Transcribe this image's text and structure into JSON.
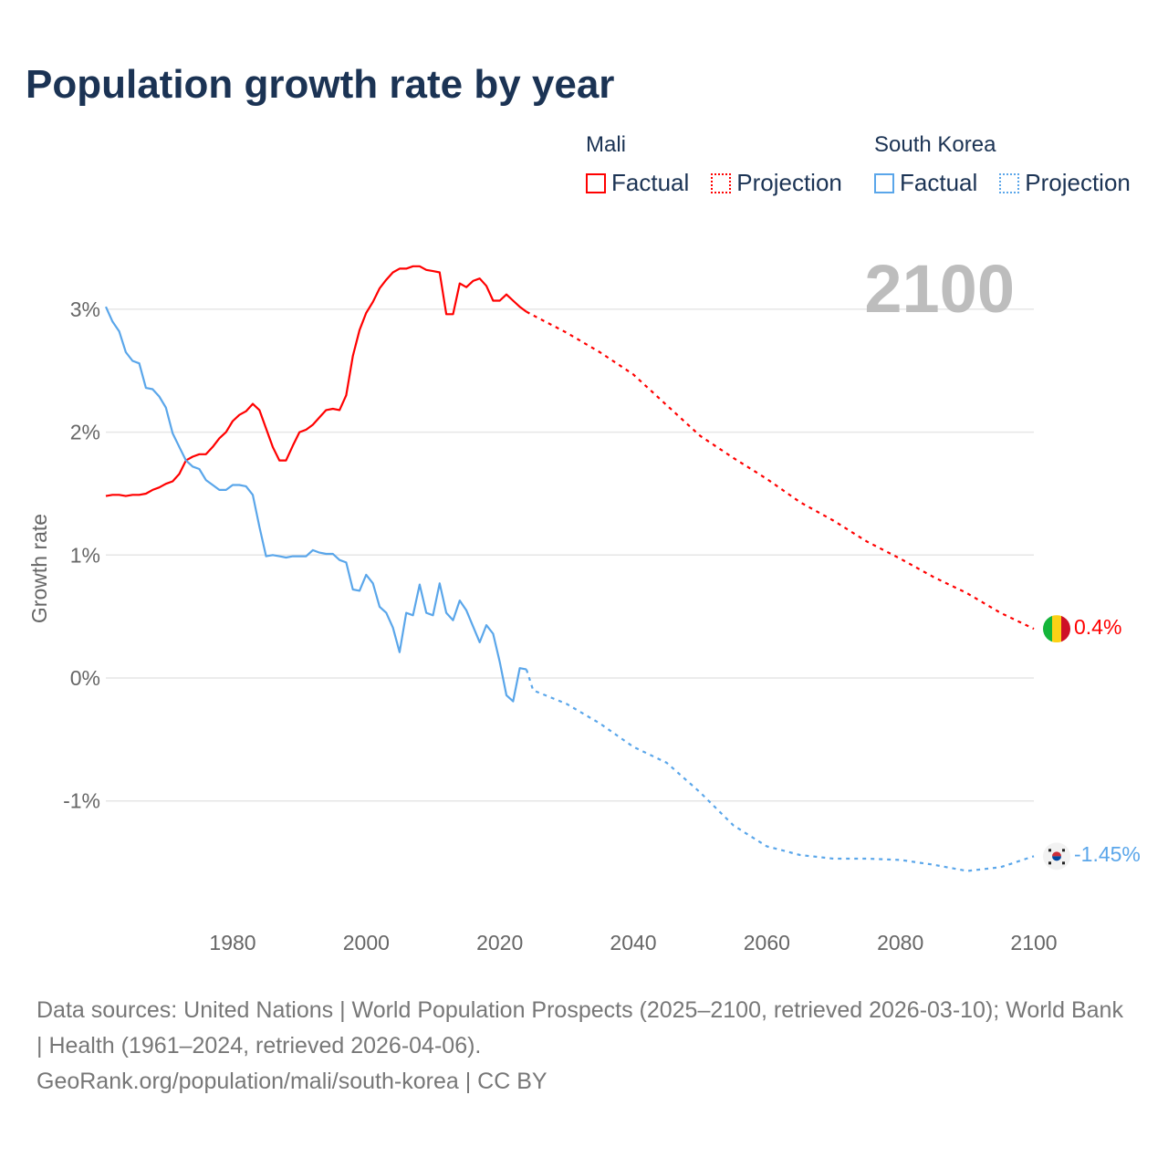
{
  "title": "Population growth rate by year",
  "legend": {
    "groups": [
      {
        "name": "Mali",
        "factual": "Factual",
        "projection": "Projection",
        "color": "#ff0000"
      },
      {
        "name": "South Korea",
        "factual": "Factual",
        "projection": "Projection",
        "color": "#5aa6ea"
      }
    ]
  },
  "year_label": "2100",
  "end_labels": {
    "mali": "0.4%",
    "south_korea": "-1.45%"
  },
  "source": {
    "line1": "Data sources: United Nations | World Population Prospects (2025–2100, retrieved 2026-03-10); World Bank | Health (1961–2024, retrieved 2026-04-06).",
    "line2": "GeoRank.org/population/mali/south-korea | CC BY"
  },
  "chart_data": {
    "type": "line",
    "title": "Population growth rate by year",
    "xlabel": "",
    "ylabel": "Growth rate",
    "xlim": [
      1961,
      2100
    ],
    "ylim": [
      -1.9,
      3.6
    ],
    "x_ticks": [
      1980,
      2000,
      2020,
      2040,
      2060,
      2080,
      2100
    ],
    "x_tick_labels": [
      "1980",
      "2000",
      "2020",
      "2040",
      "2060",
      "2080",
      "2100"
    ],
    "y_ticks": [
      3,
      2,
      1,
      0,
      -1
    ],
    "y_tick_labels": [
      "3%",
      "2%",
      "1%",
      "0%",
      "-1%"
    ],
    "grid": true,
    "legend_position": "top-right",
    "series": [
      {
        "name": "Mali",
        "kind": "factual",
        "color": "#ff0000",
        "x_start": 1961,
        "values": [
          1.48,
          1.49,
          1.49,
          1.48,
          1.49,
          1.49,
          1.5,
          1.53,
          1.55,
          1.58,
          1.6,
          1.66,
          1.77,
          1.8,
          1.82,
          1.82,
          1.88,
          1.95,
          2.0,
          2.09,
          2.14,
          2.17,
          2.23,
          2.18,
          2.03,
          1.88,
          1.77,
          1.77,
          1.89,
          2.0,
          2.02,
          2.06,
          2.12,
          2.18,
          2.19,
          2.18,
          2.3,
          2.62,
          2.83,
          2.97,
          3.06,
          3.17,
          3.24,
          3.3,
          3.33,
          3.33,
          3.35,
          3.35,
          3.32,
          3.31,
          3.3,
          2.96,
          2.96,
          3.21,
          3.18,
          3.23,
          3.25,
          3.19,
          3.07,
          3.07,
          3.12,
          3.07,
          3.02,
          2.98
        ]
      },
      {
        "name": "Mali",
        "kind": "projection",
        "color": "#ff0000",
        "x": [
          2024,
          2025,
          2030,
          2035,
          2040,
          2045,
          2050,
          2055,
          2060,
          2065,
          2070,
          2075,
          2080,
          2085,
          2090,
          2095,
          2100
        ],
        "values": [
          2.98,
          2.95,
          2.81,
          2.65,
          2.47,
          2.22,
          1.97,
          1.79,
          1.62,
          1.43,
          1.28,
          1.11,
          0.97,
          0.82,
          0.69,
          0.53,
          0.4
        ]
      },
      {
        "name": "South Korea",
        "kind": "factual",
        "color": "#5aa6ea",
        "x_start": 1961,
        "values": [
          3.02,
          2.9,
          2.82,
          2.65,
          2.58,
          2.56,
          2.36,
          2.35,
          2.29,
          2.2,
          1.99,
          1.88,
          1.77,
          1.72,
          1.7,
          1.61,
          1.57,
          1.53,
          1.53,
          1.57,
          1.57,
          1.56,
          1.49,
          1.23,
          0.99,
          1.0,
          0.99,
          0.98,
          0.99,
          0.99,
          0.99,
          1.04,
          1.02,
          1.01,
          1.01,
          0.96,
          0.94,
          0.72,
          0.71,
          0.84,
          0.77,
          0.58,
          0.53,
          0.41,
          0.21,
          0.53,
          0.51,
          0.76,
          0.53,
          0.51,
          0.77,
          0.53,
          0.47,
          0.63,
          0.55,
          0.42,
          0.29,
          0.43,
          0.36,
          0.13,
          -0.14,
          -0.19,
          0.08,
          0.07
        ]
      },
      {
        "name": "South Korea",
        "kind": "projection",
        "color": "#5aa6ea",
        "x": [
          2024,
          2025,
          2030,
          2035,
          2040,
          2045,
          2050,
          2055,
          2060,
          2065,
          2070,
          2075,
          2080,
          2085,
          2090,
          2095,
          2100
        ],
        "values": [
          0.07,
          -0.1,
          -0.21,
          -0.37,
          -0.56,
          -0.69,
          -0.93,
          -1.2,
          -1.37,
          -1.44,
          -1.47,
          -1.47,
          -1.48,
          -1.52,
          -1.57,
          -1.54,
          -1.45
        ]
      }
    ]
  }
}
